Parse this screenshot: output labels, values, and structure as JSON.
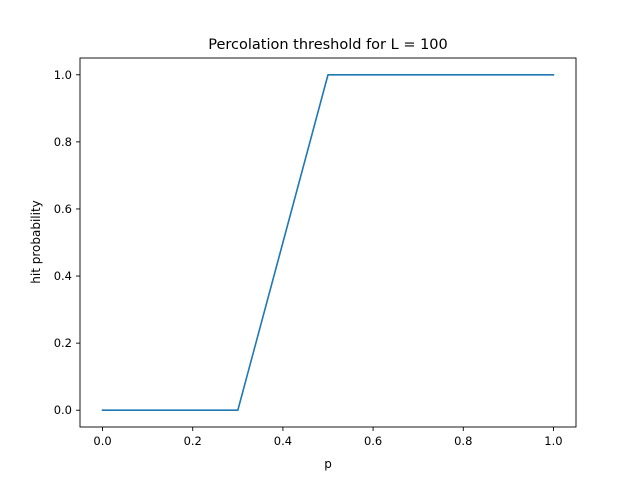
{
  "chart_data": {
    "type": "line",
    "title": "Percolation threshold for L = 100",
    "xlabel": "p",
    "ylabel": "hit probability",
    "xlim": [
      -0.05,
      1.05
    ],
    "ylim": [
      -0.05,
      1.05
    ],
    "xticks": [
      0.0,
      0.2,
      0.4,
      0.6,
      0.8,
      1.0
    ],
    "yticks": [
      0.0,
      0.2,
      0.4,
      0.6,
      0.8,
      1.0
    ],
    "xtick_labels": [
      "0.0",
      "0.2",
      "0.4",
      "0.6",
      "0.8",
      "1.0"
    ],
    "ytick_labels": [
      "0.0",
      "0.2",
      "0.4",
      "0.6",
      "0.8",
      "1.0"
    ],
    "grid": false,
    "series": [
      {
        "color": "#1f77b4",
        "x": [
          0.0,
          0.1,
          0.2,
          0.3,
          0.4,
          0.5,
          0.6,
          0.7,
          0.8,
          0.9,
          1.0
        ],
        "y": [
          0.0,
          0.0,
          0.0,
          0.0,
          0.5,
          1.0,
          1.0,
          1.0,
          1.0,
          1.0,
          1.0
        ]
      }
    ]
  }
}
